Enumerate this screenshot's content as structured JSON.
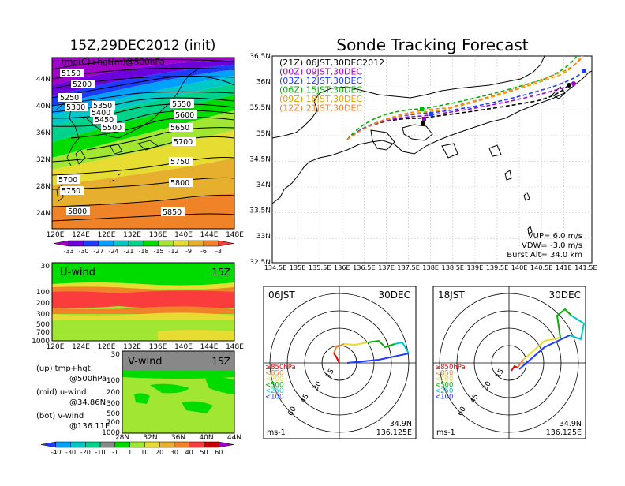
{
  "titles": {
    "left": "15Z,29DEC2012 (init)",
    "right": "Sonde Tracking Forecast"
  },
  "map500": {
    "label": "tmp(C)+hgt(m)@500hPa",
    "lon_ticks": [
      "120E",
      "124E",
      "128E",
      "132E",
      "136E",
      "140E",
      "144E",
      "148E"
    ],
    "lat_ticks": [
      "44N",
      "40N",
      "36N",
      "32N",
      "28N",
      "24N"
    ],
    "contour_labels": [
      "5150",
      "5200",
      "5250",
      "5300",
      "5350",
      "5400",
      "5450",
      "5500",
      "5550",
      "5600",
      "5650",
      "5700",
      "5750",
      "5700",
      "5750",
      "5800",
      "5800",
      "5850"
    ],
    "colorbar": [
      "-33",
      "-30",
      "-27",
      "-24",
      "-21",
      "-18",
      "-15",
      "-12",
      "-9",
      "-6",
      "-3"
    ],
    "colors": [
      "#a000c8",
      "#6e00dc",
      "#1e3cff",
      "#00a0ff",
      "#00c8c8",
      "#00d28c",
      "#00dc00",
      "#a0e632",
      "#e6dc32",
      "#e6af2d",
      "#f08228",
      "#fa3c3c"
    ]
  },
  "uwind": {
    "label": "U-wind",
    "time": "15Z",
    "y_ticks": [
      "30",
      "100",
      "200",
      "300",
      "500",
      "700",
      "1000"
    ],
    "x_ticks": [
      "120E",
      "124E",
      "128E",
      "132E",
      "136E",
      "140E",
      "144E",
      "148E"
    ]
  },
  "vwind": {
    "label": "V-wind",
    "time": "15Z",
    "y_ticks": [
      "30",
      "100",
      "200",
      "300",
      "500",
      "700",
      "1000"
    ],
    "x_ticks": [
      "28N",
      "32N",
      "36N",
      "40N",
      "44N"
    ]
  },
  "legend_notes": [
    {
      "a": "(up) tmp+hgt",
      "b": "@500hPa"
    },
    {
      "a": "(mid) u-wind",
      "b": "@34.86N"
    },
    {
      "a": "(bot) v-wind",
      "b": "@136.11E"
    }
  ],
  "wind_colorbar": [
    "-40",
    "-30",
    "-20",
    "-10",
    "-1",
    "1",
    "10",
    "20",
    "30",
    "40",
    "50",
    "60"
  ],
  "track_map": {
    "legend": [
      {
        "text": "(21Z) 06JST,30DEC2012",
        "color": "#000000"
      },
      {
        "text": "(00Z) 09JST,30DEC",
        "color": "#a000c8"
      },
      {
        "text": "(03Z) 12JST,30DEC",
        "color": "#1e3cff"
      },
      {
        "text": "(06Z) 15JST,30DEC",
        "color": "#00b400"
      },
      {
        "text": "(09Z) 18JST,30DEC",
        "color": "#e6a000"
      },
      {
        "text": "(12Z) 21JST,30DEC",
        "color": "#f08228"
      }
    ],
    "lat_ticks": [
      "36.5N",
      "36N",
      "35.5N",
      "35N",
      "34.5N",
      "34N",
      "33.5N",
      "33N",
      "32.5N"
    ],
    "lon_ticks": [
      "134.5E",
      "135E",
      "135.5E",
      "136E",
      "136.5E",
      "137E",
      "137.5E",
      "138E",
      "138.5E",
      "139E",
      "139.5E",
      "140E",
      "140.5E",
      "141E",
      "141.5E"
    ],
    "info": [
      "VUP=  6.0 m/s",
      "VDW= -3.0 m/s",
      "Burst Alt= 34.0 km"
    ]
  },
  "hodographs": [
    {
      "label": "06JST",
      "date": "30DEC",
      "lat": "34.9N",
      "lon": "136.125E",
      "unit": "ms-1"
    },
    {
      "label": "18JST",
      "date": "30DEC",
      "lat": "34.9N",
      "lon": "136.125E",
      "unit": "ms-1"
    }
  ],
  "hodo_legend": [
    {
      "text": "≥850hPa",
      "color": "#e60000"
    },
    {
      "text": "<850",
      "color": "#f08228"
    },
    {
      "text": "<700",
      "color": "#e6dc32"
    },
    {
      "text": "<500",
      "color": "#00b400"
    },
    {
      "text": "<250",
      "color": "#00c8c8"
    },
    {
      "text": "<100",
      "color": "#1e3cff"
    }
  ],
  "hodo_ring_labels": [
    "15",
    "30",
    "45",
    "60"
  ]
}
